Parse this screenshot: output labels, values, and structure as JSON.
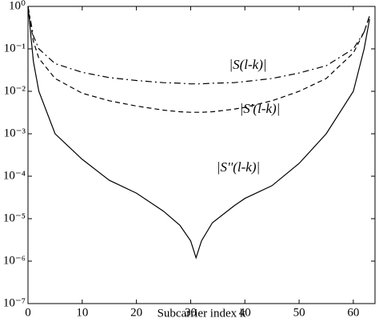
{
  "chart_data": {
    "type": "line",
    "x_label": "Subcarrier index k",
    "annotations": [
      "|S(l-k)|",
      "|S'(l-k)|",
      "|S''(l-k)|"
    ],
    "x": [
      0,
      1,
      2,
      5,
      10,
      15,
      20,
      25,
      28,
      30,
      31,
      32,
      34,
      38,
      40,
      45,
      50,
      55,
      60,
      62,
      63
    ],
    "series": [
      {
        "name": "|S(l-k)|",
        "color": "#000000",
        "dash": "8 4 2 4",
        "values": [
          1,
          0.2,
          0.1,
          0.045,
          0.028,
          0.021,
          0.018,
          0.016,
          0.0155,
          0.015,
          0.015,
          0.015,
          0.0155,
          0.016,
          0.017,
          0.02,
          0.027,
          0.04,
          0.1,
          0.25,
          0.6
        ]
      },
      {
        "name": "|S'(l-k)|",
        "color": "#000000",
        "dash": "6 4",
        "values": [
          1,
          0.15,
          0.06,
          0.02,
          0.009,
          0.006,
          0.0045,
          0.0036,
          0.0033,
          0.0032,
          0.0032,
          0.0032,
          0.0033,
          0.0038,
          0.0042,
          0.006,
          0.01,
          0.02,
          0.08,
          0.25,
          0.6
        ]
      },
      {
        "name": "|S''(l-k)|",
        "color": "#000000",
        "dash": "none",
        "values": [
          1,
          0.05,
          0.01,
          0.001,
          0.00025,
          8e-05,
          4e-05,
          1.5e-05,
          7e-06,
          3e-06,
          1.2e-06,
          3e-06,
          8e-06,
          2e-05,
          3e-05,
          6e-05,
          0.0002,
          0.001,
          0.01,
          0.1,
          0.5
        ]
      }
    ],
    "xlim": [
      0,
      64
    ],
    "xticks": [
      0,
      10,
      20,
      30,
      40,
      50,
      60
    ],
    "ylim": [
      1e-07,
      1
    ],
    "ylog": true,
    "yticks": [
      {
        "value": 1,
        "label": "10⁰"
      },
      {
        "value": 0.1,
        "label": "10⁻¹"
      },
      {
        "value": 0.01,
        "label": "10⁻²"
      },
      {
        "value": 0.001,
        "label": "10⁻³"
      },
      {
        "value": 0.0001,
        "label": "10⁻⁴"
      },
      {
        "value": 1e-05,
        "label": "10⁻⁵"
      },
      {
        "value": 1e-06,
        "label": "10⁻⁶"
      },
      {
        "value": 1e-07,
        "label": "10⁻⁷"
      }
    ]
  }
}
